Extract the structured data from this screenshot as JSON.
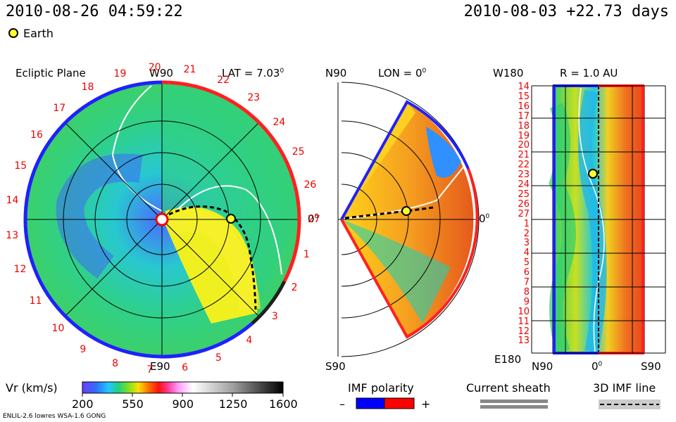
{
  "header": {
    "datetime": "2010-08-26 04:59:22",
    "run": "2010-08-03 +22.73 days"
  },
  "legend": {
    "earth_label": "Earth"
  },
  "panel_ecliptic": {
    "title": "Ecliptic Plane",
    "top_label": "W90",
    "lat_label": "LAT = 7.03",
    "lat_sup": "0",
    "right_label": "0",
    "right_sup": "0",
    "bottom_label": "E90",
    "day_ticks": [
      "20",
      "21",
      "22",
      "23",
      "24",
      "25",
      "26",
      "27",
      "1",
      "2",
      "3",
      "4",
      "5",
      "6",
      "7",
      "8",
      "9",
      "10",
      "11",
      "12",
      "13",
      "14",
      "15",
      "16",
      "17",
      "18",
      "19"
    ]
  },
  "panel_meridional": {
    "top_left": "N90",
    "lon_label": "LON = 0",
    "lon_sup": "0",
    "right_label": "0",
    "right_sup": "0",
    "bottom_left": "S90"
  },
  "panel_time": {
    "top_left": "W180",
    "r_label": "R = 1.0 AU",
    "bottom_left": "E180",
    "x_left": "N90",
    "x_mid": "0",
    "x_mid_sup": "0",
    "x_right": "S90",
    "rows": [
      "14",
      "15",
      "16",
      "17",
      "18",
      "19",
      "20",
      "21",
      "22",
      "23",
      "24",
      "25",
      "26",
      "27",
      "1",
      "2",
      "3",
      "4",
      "5",
      "6",
      "7",
      "8",
      "9",
      "10",
      "11",
      "12",
      "13"
    ]
  },
  "colorbar": {
    "label": "Vr (km/s)",
    "ticks": [
      "200",
      "550",
      "900",
      "1250",
      "1600"
    ]
  },
  "imf": {
    "title": "IMF polarity",
    "minus": "–",
    "plus": "+",
    "neg_color": "#0000ff",
    "pos_color": "#ff0000"
  },
  "sheath": {
    "title": "Current sheath"
  },
  "imfline": {
    "title": "3D IMF line"
  },
  "footer": {
    "model": "ENLIL-2.6 lowres WSA-1.6 GONG"
  }
}
